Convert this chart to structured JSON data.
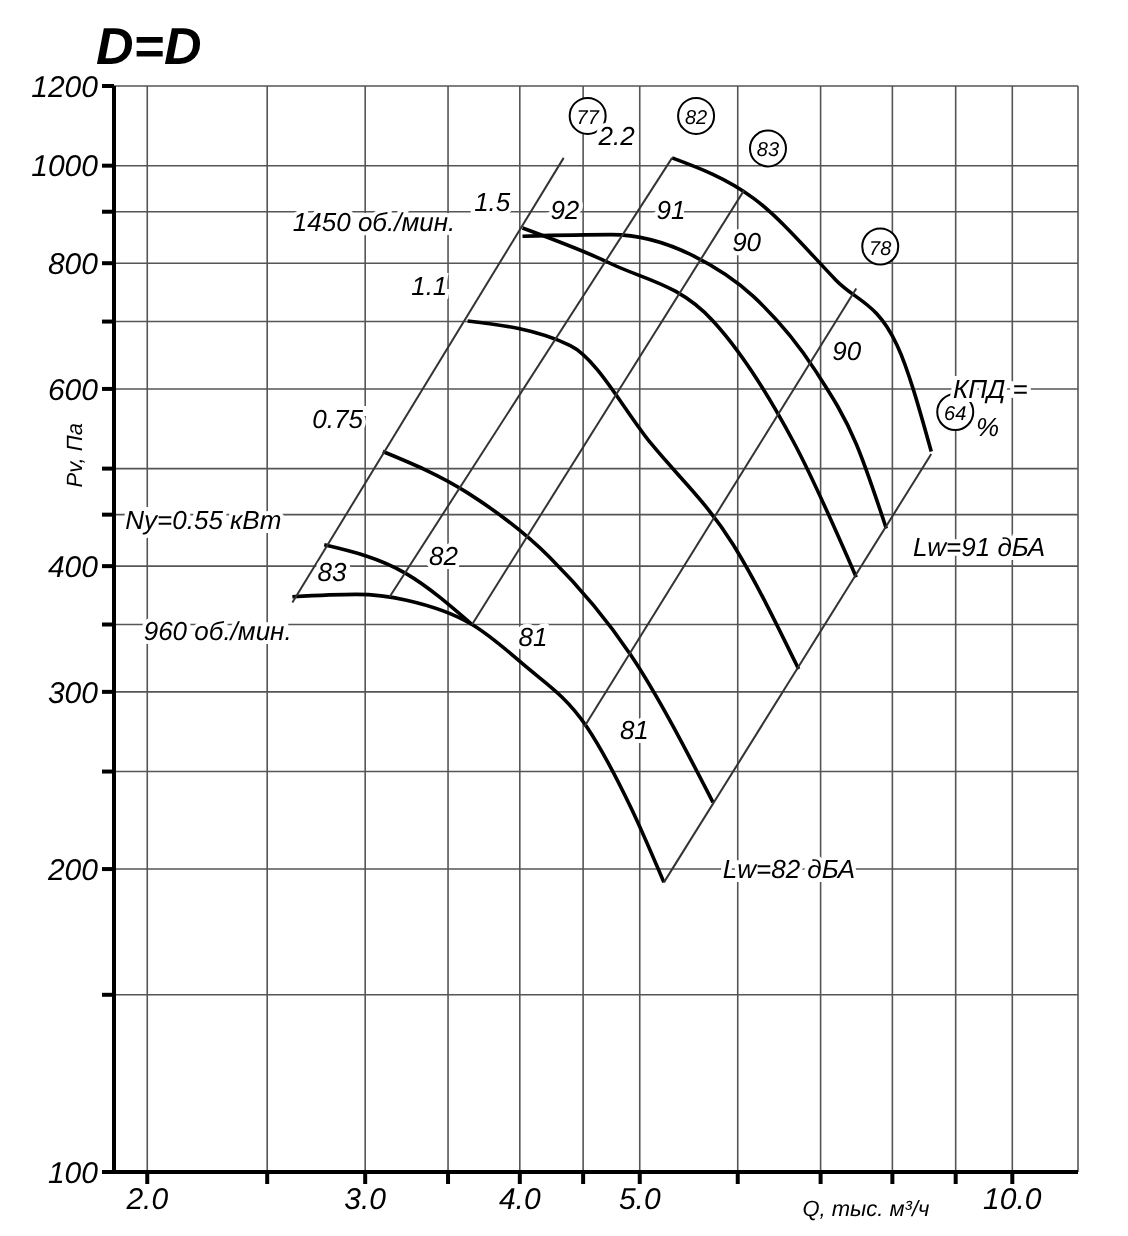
{
  "chart_data": {
    "type": "line",
    "title": "D=D",
    "xlabel": "Q, тыс. м³/ч",
    "ylabel": "Pv, Па",
    "log": "xy",
    "grid": true,
    "marker": "none",
    "line_style": "solid",
    "xlim": [
      1.88,
      11.3
    ],
    "ylim": [
      100,
      1200
    ],
    "xticks": [
      {
        "value": 2,
        "label": "2.0"
      },
      {
        "value": 2.5,
        "label": null
      },
      {
        "value": 3,
        "label": "3.0"
      },
      {
        "value": 3.5,
        "label": null
      },
      {
        "value": 4,
        "label": "4.0"
      },
      {
        "value": 4.5,
        "label": null
      },
      {
        "value": 5,
        "label": "5.0"
      },
      {
        "value": 6,
        "label": null
      },
      {
        "value": 7,
        "label": null
      },
      {
        "value": 8,
        "label": null
      },
      {
        "value": 9,
        "label": null
      },
      {
        "value": 10,
        "label": "10.0"
      }
    ],
    "yticks": [
      100,
      {
        "value": 150,
        "label": null
      },
      200,
      {
        "value": 250,
        "label": null
      },
      300,
      {
        "value": 350,
        "label": null
      },
      400,
      {
        "value": 450,
        "label": null
      },
      {
        "value": 500,
        "label": null
      },
      600,
      {
        "value": 700,
        "label": null
      },
      800,
      {
        "value": 900,
        "label": null
      },
      1000,
      1200
    ],
    "series": [
      {
        "color": "#000000",
        "x": [
          5.31,
          6.18,
          7.2,
          8.07,
          8.6
        ],
        "values": [
          1018,
          928,
          770,
          663,
          520
        ]
      },
      {
        "color": "#000000",
        "x": [
          4.02,
          4.74,
          5.52,
          6.18,
          6.93,
          7.48,
          7.91
        ],
        "values": [
          851,
          854,
          814,
          741,
          626,
          529,
          436
        ]
      },
      {
        "color": "#000000",
        "x": [
          4.02,
          4.74,
          5.73,
          6.67,
          7.48
        ],
        "values": [
          867,
          799,
          701,
          529,
          390
        ]
      },
      {
        "color": "#000000",
        "x": [
          3.63,
          4.39,
          5.11,
          5.95,
          6.72
        ],
        "values": [
          701,
          663,
          529,
          420,
          316
        ]
      },
      {
        "color": "#000000",
        "x": [
          3.1,
          3.63,
          4.23,
          4.92,
          5.73
        ],
        "values": [
          520,
          473,
          408,
          326,
          233
        ]
      },
      {
        "color": "#000000",
        "x": [
          2.78,
          3.24,
          3.66
        ],
        "values": [
          420,
          393,
          350
        ]
      },
      {
        "color": "#000000",
        "x": [
          2.62,
          2.95,
          3.24,
          3.66,
          4.02,
          4.53,
          4.92,
          5.23
        ],
        "values": [
          373,
          375,
          370,
          350,
          320,
          277,
          230,
          194
        ]
      },
      {
        "name": "77",
        "color": "#333333",
        "x": [
          2.62,
          4.34
        ],
        "values": [
          368,
          1018
        ]
      },
      {
        "name": "82",
        "color": "#333333",
        "x": [
          3.14,
          5.31
        ],
        "values": [
          373,
          1018
        ]
      },
      {
        "name": "83",
        "color": "#333333",
        "x": [
          3.66,
          6.07
        ],
        "values": [
          350,
          945
        ]
      },
      {
        "name": "78",
        "color": "#333333",
        "x": [
          4.51,
          7.48
        ],
        "values": [
          277,
          755
        ]
      },
      {
        "name": "64",
        "color": "#333333",
        "x": [
          5.23,
          8.6
        ],
        "values": [
          194,
          517
        ]
      }
    ],
    "annotations": [
      "1450 об./мин.",
      "1.5",
      "92",
      "91",
      "90",
      "2.2",
      "1.1",
      "0.75",
      "Ny=0.55 кВт",
      "83",
      "82",
      "960 об./мин.",
      "81",
      "81",
      "90",
      "Lw=91 дБА",
      "Lw=82 дБА",
      "КПД =",
      "%"
    ]
  }
}
